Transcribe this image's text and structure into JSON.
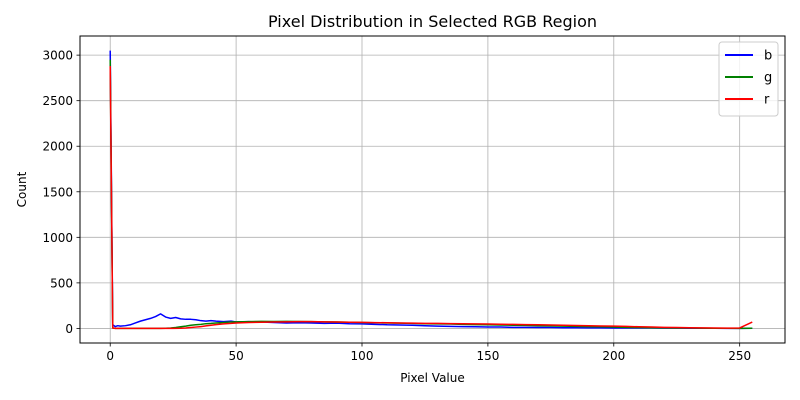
{
  "chart_data": {
    "type": "line",
    "title": "Pixel Distribution in Selected RGB Region",
    "xlabel": "Pixel Value",
    "ylabel": "Count",
    "xlim": [
      -12,
      268
    ],
    "ylim": [
      -160,
      3210
    ],
    "xticks": [
      0,
      50,
      100,
      150,
      200,
      250
    ],
    "yticks": [
      0,
      500,
      1000,
      1500,
      2000,
      2500,
      3000
    ],
    "grid": true,
    "legend_position": "top-right",
    "series": [
      {
        "name": "b",
        "color": "#0000ff",
        "points": [
          [
            0,
            3050
          ],
          [
            1,
            40
          ],
          [
            2,
            20
          ],
          [
            3,
            30
          ],
          [
            4,
            25
          ],
          [
            6,
            30
          ],
          [
            8,
            40
          ],
          [
            10,
            60
          ],
          [
            12,
            80
          ],
          [
            14,
            95
          ],
          [
            16,
            110
          ],
          [
            18,
            130
          ],
          [
            20,
            160
          ],
          [
            22,
            125
          ],
          [
            24,
            110
          ],
          [
            26,
            120
          ],
          [
            28,
            105
          ],
          [
            30,
            100
          ],
          [
            32,
            100
          ],
          [
            34,
            95
          ],
          [
            36,
            85
          ],
          [
            38,
            80
          ],
          [
            40,
            85
          ],
          [
            42,
            80
          ],
          [
            45,
            75
          ],
          [
            48,
            80
          ],
          [
            50,
            70
          ],
          [
            55,
            75
          ],
          [
            60,
            70
          ],
          [
            65,
            65
          ],
          [
            70,
            60
          ],
          [
            75,
            62
          ],
          [
            80,
            60
          ],
          [
            85,
            55
          ],
          [
            90,
            58
          ],
          [
            95,
            52
          ],
          [
            100,
            50
          ],
          [
            105,
            45
          ],
          [
            110,
            40
          ],
          [
            115,
            38
          ],
          [
            120,
            35
          ],
          [
            125,
            30
          ],
          [
            130,
            25
          ],
          [
            135,
            22
          ],
          [
            140,
            20
          ],
          [
            145,
            18
          ],
          [
            150,
            15
          ],
          [
            155,
            15
          ],
          [
            160,
            12
          ],
          [
            165,
            12
          ],
          [
            170,
            10
          ],
          [
            175,
            10
          ],
          [
            180,
            8
          ],
          [
            185,
            8
          ],
          [
            190,
            6
          ],
          [
            195,
            6
          ],
          [
            200,
            5
          ],
          [
            205,
            5
          ],
          [
            210,
            4
          ],
          [
            215,
            4
          ],
          [
            220,
            3
          ],
          [
            225,
            3
          ],
          [
            230,
            2
          ],
          [
            235,
            2
          ],
          [
            240,
            2
          ],
          [
            245,
            1
          ],
          [
            250,
            1
          ],
          [
            255,
            2
          ]
        ]
      },
      {
        "name": "g",
        "color": "#008000",
        "points": [
          [
            0,
            2950
          ],
          [
            1,
            5
          ],
          [
            2,
            0
          ],
          [
            5,
            0
          ],
          [
            10,
            0
          ],
          [
            15,
            0
          ],
          [
            20,
            0
          ],
          [
            22,
            2
          ],
          [
            24,
            5
          ],
          [
            26,
            10
          ],
          [
            28,
            18
          ],
          [
            30,
            25
          ],
          [
            32,
            35
          ],
          [
            34,
            40
          ],
          [
            36,
            45
          ],
          [
            38,
            52
          ],
          [
            40,
            55
          ],
          [
            42,
            60
          ],
          [
            45,
            65
          ],
          [
            48,
            70
          ],
          [
            50,
            72
          ],
          [
            55,
            75
          ],
          [
            60,
            78
          ],
          [
            65,
            76
          ],
          [
            70,
            78
          ],
          [
            75,
            76
          ],
          [
            80,
            75
          ],
          [
            85,
            72
          ],
          [
            90,
            70
          ],
          [
            95,
            68
          ],
          [
            100,
            65
          ],
          [
            105,
            62
          ],
          [
            110,
            60
          ],
          [
            115,
            58
          ],
          [
            120,
            55
          ],
          [
            125,
            52
          ],
          [
            130,
            50
          ],
          [
            135,
            48
          ],
          [
            140,
            45
          ],
          [
            145,
            42
          ],
          [
            150,
            40
          ],
          [
            155,
            38
          ],
          [
            160,
            35
          ],
          [
            165,
            33
          ],
          [
            170,
            30
          ],
          [
            175,
            28
          ],
          [
            180,
            25
          ],
          [
            185,
            23
          ],
          [
            190,
            20
          ],
          [
            195,
            18
          ],
          [
            200,
            15
          ],
          [
            205,
            12
          ],
          [
            210,
            10
          ],
          [
            215,
            8
          ],
          [
            220,
            6
          ],
          [
            225,
            5
          ],
          [
            230,
            4
          ],
          [
            235,
            3
          ],
          [
            240,
            2
          ],
          [
            245,
            2
          ],
          [
            250,
            1
          ],
          [
            255,
            2
          ]
        ]
      },
      {
        "name": "r",
        "color": "#ff0000",
        "points": [
          [
            0,
            2880
          ],
          [
            1,
            5
          ],
          [
            2,
            0
          ],
          [
            5,
            0
          ],
          [
            10,
            0
          ],
          [
            15,
            0
          ],
          [
            20,
            0
          ],
          [
            25,
            0
          ],
          [
            28,
            2
          ],
          [
            30,
            5
          ],
          [
            32,
            10
          ],
          [
            34,
            15
          ],
          [
            36,
            20
          ],
          [
            38,
            28
          ],
          [
            40,
            35
          ],
          [
            42,
            42
          ],
          [
            45,
            50
          ],
          [
            48,
            55
          ],
          [
            50,
            60
          ],
          [
            55,
            65
          ],
          [
            60,
            68
          ],
          [
            65,
            70
          ],
          [
            70,
            72
          ],
          [
            75,
            74
          ],
          [
            80,
            75
          ],
          [
            85,
            72
          ],
          [
            90,
            70
          ],
          [
            95,
            68
          ],
          [
            100,
            66
          ],
          [
            105,
            64
          ],
          [
            110,
            62
          ],
          [
            115,
            60
          ],
          [
            120,
            58
          ],
          [
            125,
            56
          ],
          [
            130,
            55
          ],
          [
            135,
            53
          ],
          [
            140,
            52
          ],
          [
            145,
            50
          ],
          [
            150,
            48
          ],
          [
            155,
            46
          ],
          [
            160,
            44
          ],
          [
            165,
            42
          ],
          [
            170,
            40
          ],
          [
            175,
            38
          ],
          [
            180,
            35
          ],
          [
            185,
            32
          ],
          [
            190,
            30
          ],
          [
            195,
            27
          ],
          [
            200,
            25
          ],
          [
            205,
            22
          ],
          [
            210,
            18
          ],
          [
            215,
            15
          ],
          [
            220,
            12
          ],
          [
            225,
            10
          ],
          [
            230,
            8
          ],
          [
            235,
            6
          ],
          [
            240,
            4
          ],
          [
            245,
            3
          ],
          [
            250,
            5
          ],
          [
            255,
            70
          ]
        ]
      }
    ]
  }
}
